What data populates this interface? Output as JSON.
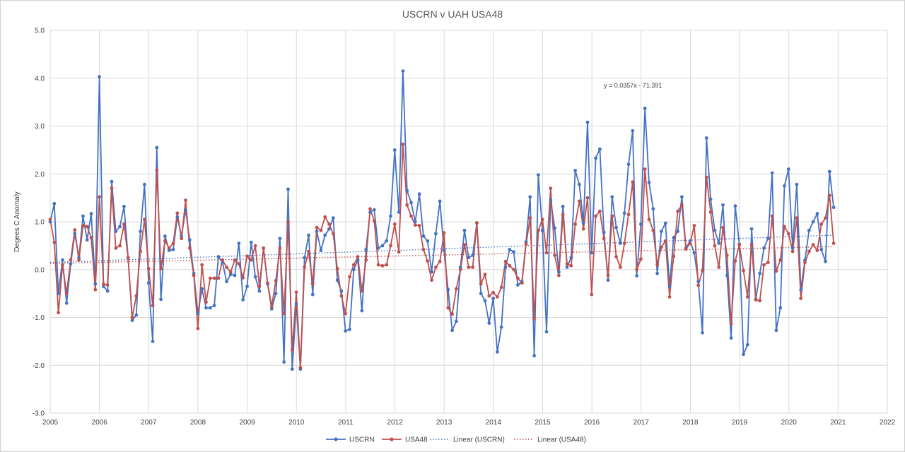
{
  "chart_data": {
    "type": "line",
    "title": "USCRN v UAH USA48",
    "ylabel": "Degees  C Anomaly",
    "xlabel": "",
    "xlim": [
      2005,
      2022
    ],
    "ylim": [
      -3.0,
      5.0
    ],
    "xticks": [
      "2005",
      "2006",
      "2007",
      "2008",
      "2009",
      "2010",
      "2011",
      "2012",
      "2013",
      "2014",
      "2015",
      "2016",
      "2017",
      "2018",
      "2019",
      "2020",
      "2021",
      "2022"
    ],
    "yticks": [
      "-3.0",
      "-2.0",
      "-1.0",
      "0.0",
      "1.0",
      "2.0",
      "3.0",
      "4.0",
      "5.0"
    ],
    "grid": true,
    "legend_position": "bottom",
    "annotation": "y = 0.0357x - 71.391",
    "colors": {
      "USCRN": "#4472c4",
      "USA48": "#c0504d"
    },
    "x_start": 2005.0,
    "x_step": 0.0833,
    "series": [
      {
        "name": "USCRN",
        "values": [
          1.0,
          1.38,
          -0.5,
          0.2,
          -0.7,
          0.12,
          0.75,
          0.25,
          1.12,
          0.62,
          1.17,
          -0.3,
          4.03,
          -0.35,
          -0.45,
          1.84,
          0.8,
          0.9,
          1.32,
          0.25,
          -1.06,
          -0.95,
          0.8,
          1.78,
          -0.28,
          -1.5,
          2.55,
          -0.62,
          0.7,
          0.4,
          0.42,
          1.1,
          0.7,
          1.25,
          0.62,
          -0.08,
          -0.92,
          -0.4,
          -0.8,
          -0.8,
          -0.75,
          0.27,
          0.15,
          -0.25,
          -0.1,
          -0.12,
          0.55,
          -0.63,
          -0.35,
          0.57,
          -0.15,
          -0.45,
          0.45,
          -0.3,
          -0.82,
          -0.5,
          0.65,
          -1.93,
          1.68,
          -2.08,
          -0.72,
          -2.08,
          0.25,
          0.72,
          -0.52,
          0.8,
          0.4,
          0.72,
          0.85,
          1.08,
          -0.22,
          -0.45,
          -1.28,
          -1.25,
          0.0,
          0.2,
          -0.86,
          0.42,
          1.2,
          1.25,
          0.45,
          0.5,
          0.6,
          1.12,
          2.5,
          1.2,
          4.15,
          1.65,
          1.4,
          1.0,
          1.58,
          0.7,
          0.6,
          -0.05,
          0.75,
          1.43,
          0.4,
          -0.42,
          -1.27,
          -1.08,
          0.05,
          0.82,
          0.25,
          0.3,
          0.97,
          -0.5,
          -0.65,
          -1.12,
          -0.6,
          -1.72,
          -1.2,
          0.05,
          0.42,
          0.37,
          -0.32,
          -0.25,
          0.58,
          1.52,
          -1.8,
          1.98,
          0.82,
          -1.3,
          1.45,
          0.87,
          -0.05,
          1.32,
          0.05,
          0.25,
          2.07,
          1.78,
          0.97,
          3.08,
          0.35,
          2.33,
          2.52,
          0.78,
          -0.22,
          1.52,
          0.88,
          0.55,
          1.18,
          2.2,
          2.9,
          -0.13,
          0.95,
          3.37,
          1.82,
          1.27,
          -0.08,
          0.8,
          0.97,
          -0.35,
          0.67,
          0.8,
          1.52,
          0.45,
          0.6,
          0.35,
          -0.25,
          -1.32,
          2.75,
          1.47,
          0.82,
          0.55,
          1.35,
          -0.12,
          -1.43,
          1.33,
          0.53,
          -1.77,
          -1.57,
          0.85,
          -0.62,
          -0.08,
          0.45,
          0.65,
          2.02,
          -1.27,
          -0.8,
          1.75,
          2.1,
          0.45,
          1.78,
          -0.42,
          0.2,
          0.82,
          1.0,
          1.17,
          0.42,
          0.17,
          2.05,
          1.3
        ]
      },
      {
        "name": "USA48",
        "values": [
          1.05,
          0.57,
          -0.9,
          0.1,
          -0.5,
          0.2,
          0.83,
          0.2,
          0.92,
          0.9,
          0.67,
          -0.42,
          1.52,
          -0.3,
          -0.32,
          1.7,
          0.45,
          0.5,
          0.95,
          0.25,
          -1.0,
          -0.55,
          0.38,
          1.05,
          0.02,
          -0.75,
          2.08,
          0.02,
          0.6,
          0.45,
          0.55,
          1.18,
          0.65,
          1.45,
          0.45,
          -0.12,
          -1.23,
          0.1,
          -0.68,
          -0.18,
          -0.18,
          -0.18,
          0.2,
          0.05,
          -0.05,
          0.2,
          0.12,
          -0.17,
          0.28,
          0.2,
          0.5,
          -0.35,
          0.45,
          -0.28,
          -0.77,
          -0.23,
          0.45,
          -0.92,
          1.0,
          -1.68,
          -0.47,
          -2.05,
          0.05,
          0.38,
          -0.3,
          0.88,
          0.82,
          1.1,
          0.95,
          0.75,
          0.02,
          -0.55,
          -0.92,
          -0.15,
          0.1,
          0.27,
          -0.45,
          0.2,
          1.27,
          1.02,
          0.1,
          0.08,
          0.1,
          0.5,
          0.95,
          0.37,
          2.62,
          1.35,
          1.12,
          0.93,
          0.92,
          0.42,
          0.18,
          -0.22,
          0.05,
          0.17,
          0.77,
          -0.8,
          -0.93,
          -0.4,
          0.0,
          0.52,
          0.05,
          0.05,
          0.98,
          -0.3,
          -0.1,
          -0.55,
          -0.48,
          -0.57,
          -0.37,
          0.17,
          0.08,
          0.0,
          -0.18,
          -0.28,
          0.53,
          1.08,
          -1.03,
          0.82,
          1.05,
          0.35,
          1.7,
          0.3,
          -0.12,
          1.15,
          0.12,
          0.08,
          0.95,
          1.43,
          0.85,
          1.5,
          -0.52,
          1.12,
          1.22,
          0.65,
          -0.12,
          1.12,
          0.27,
          0.05,
          0.55,
          1.15,
          1.83,
          0.0,
          0.22,
          2.1,
          1.05,
          0.82,
          0.1,
          0.47,
          0.6,
          -0.57,
          0.28,
          1.22,
          1.35,
          0.43,
          0.55,
          0.92,
          -0.33,
          -0.02,
          1.93,
          1.2,
          0.5,
          0.05,
          0.88,
          0.3,
          -1.13,
          0.18,
          0.52,
          -0.02,
          -0.57,
          0.52,
          -0.63,
          -0.65,
          0.1,
          0.15,
          1.12,
          -0.03,
          0.2,
          0.9,
          0.75,
          0.38,
          1.08,
          -0.6,
          0.15,
          0.38,
          0.52,
          0.4,
          0.95,
          1.08,
          1.55,
          0.55
        ]
      }
    ],
    "trendlines": [
      {
        "name": "Linear (USCRN)",
        "start": 0.15,
        "end": 0.72
      },
      {
        "name": "Linear (USA48)",
        "start": 0.13,
        "end": 0.48
      }
    ]
  }
}
